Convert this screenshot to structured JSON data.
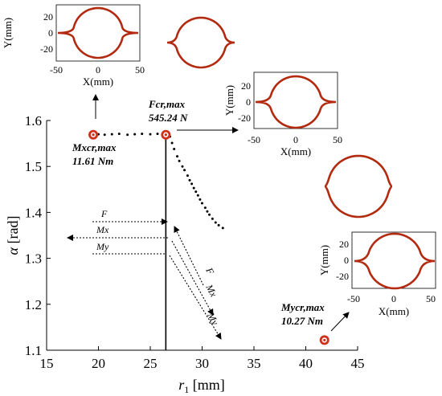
{
  "chart_data": {
    "type": "scatter",
    "title": "",
    "xlabel_symbol": "r",
    "xlabel_sub": "1",
    "xlabel_unit": " [mm]",
    "ylabel_symbol": "α",
    "ylabel_unit": " [rad]",
    "xlim": [
      15,
      45
    ],
    "ylim": [
      1.1,
      1.6
    ],
    "xticks": [
      "15",
      "20",
      "25",
      "30",
      "35",
      "40",
      "45"
    ],
    "yticks": [
      "1.1",
      "1.2",
      "1.3",
      "1.4",
      "1.5",
      "1.6"
    ],
    "grid": false,
    "series": [
      {
        "type": "scatter",
        "points": [
          [
            20.0,
            1.57
          ],
          [
            20.6,
            1.569
          ],
          [
            21.3,
            1.57
          ],
          [
            22.0,
            1.571
          ],
          [
            22.8,
            1.569
          ],
          [
            23.5,
            1.57
          ],
          [
            24.2,
            1.571
          ],
          [
            25.0,
            1.57
          ],
          [
            25.7,
            1.571
          ],
          [
            26.4,
            1.57
          ],
          [
            26.9,
            1.565
          ],
          [
            27.1,
            1.551
          ],
          [
            27.3,
            1.538
          ],
          [
            27.6,
            1.522
          ],
          [
            27.8,
            1.512
          ],
          [
            28.1,
            1.5
          ],
          [
            28.3,
            1.492
          ],
          [
            28.6,
            1.48
          ],
          [
            28.8,
            1.47
          ],
          [
            29.0,
            1.462
          ],
          [
            29.2,
            1.453
          ],
          [
            29.4,
            1.445
          ],
          [
            29.6,
            1.437
          ],
          [
            29.8,
            1.428
          ],
          [
            30.0,
            1.42
          ],
          [
            30.3,
            1.41
          ],
          [
            30.5,
            1.402
          ],
          [
            30.7,
            1.395
          ],
          [
            31.0,
            1.386
          ],
          [
            31.3,
            1.378
          ],
          [
            31.6,
            1.372
          ],
          [
            32.0,
            1.366
          ]
        ]
      }
    ],
    "vertical_line_x": 26.5,
    "critical_points": [
      {
        "label": "Mxcr,max",
        "value": "11.61 Nm",
        "r1": 19.5,
        "alpha": 1.569
      },
      {
        "label": "Fcr,max",
        "value": "545.24 N",
        "r1": 26.5,
        "alpha": 1.569
      },
      {
        "label": "Mycr,max",
        "value": "10.27 Nm",
        "r1": 41.8,
        "alpha": 1.122
      }
    ],
    "direction_arrows": [
      "F",
      "Mx",
      "My"
    ],
    "insets": [
      {
        "xlabel": "X(mm)",
        "ylabel": "Y(mm)",
        "xticks": [
          "-50",
          "0",
          "50"
        ],
        "yticks": [
          "20",
          "0",
          "-20"
        ]
      },
      {
        "xlabel": "X(mm)",
        "ylabel": "Y(mm)",
        "xticks": [
          "-50",
          "0",
          "50"
        ],
        "yticks": [
          "20",
          "0",
          "-20"
        ]
      },
      {
        "xlabel": "X(mm)",
        "ylabel": "Y(mm)",
        "xticks": [
          "-50",
          "0",
          "50"
        ],
        "yticks": [
          "20",
          "0",
          "-20"
        ]
      }
    ],
    "shape_color": "#b22a10",
    "marker_color": "#d0301a"
  }
}
